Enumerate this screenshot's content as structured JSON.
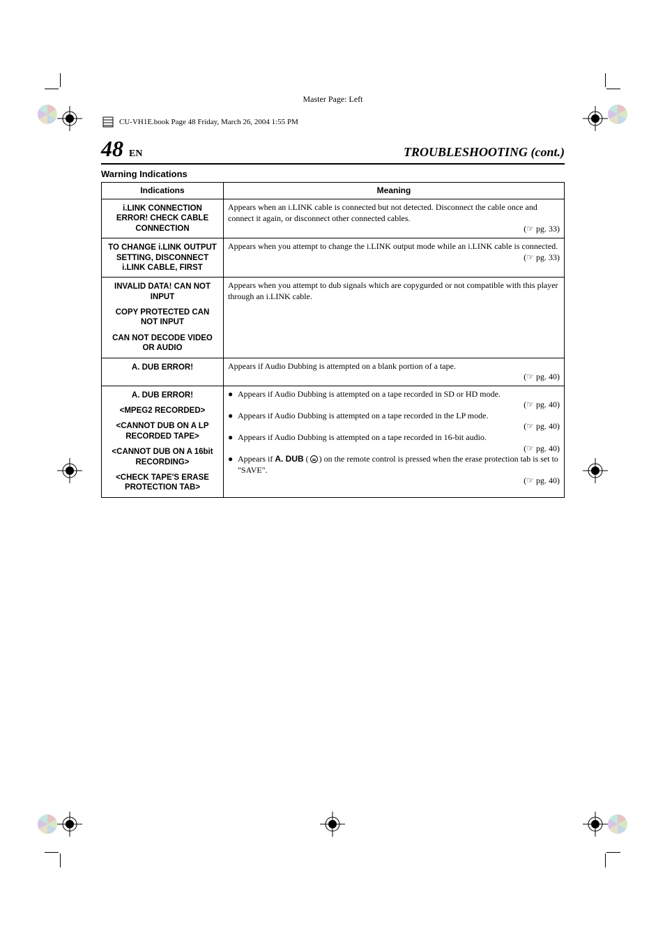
{
  "master_page_label": "Master Page: Left",
  "book_header": "CU-VH1E.book  Page 48  Friday, March 26, 2004  1:55 PM",
  "page_number": "48",
  "lang": "EN",
  "chapter_title": "TROUBLESHOOTING (cont.)",
  "section_title": "Warning Indications",
  "table": {
    "head": {
      "indications": "Indications",
      "meaning": "Meaning"
    },
    "rows": [
      {
        "indication_blocks": [
          "i.LINK CONNECTION ERROR! CHECK CABLE CONNECTION"
        ],
        "meaning": "Appears when an i.LINK cable is connected but not detected. Disconnect the cable once and connect it again, or disconnect other connected cables.",
        "pgref": "(☞ pg. 33)"
      },
      {
        "indication_blocks": [
          "TO CHANGE i.LINK OUTPUT SETTING, DISCONNECT i.LINK CABLE, FIRST"
        ],
        "meaning": "Appears when you attempt to change the i.LINK output mode while an i.LINK cable is connected.",
        "pgref": "(☞ pg. 33)"
      },
      {
        "indication_blocks": [
          "INVALID DATA! CAN NOT INPUT",
          "COPY PROTECTED CAN NOT INPUT",
          "CAN NOT DECODE VIDEO OR AUDIO"
        ],
        "meaning": "Appears when you attempt to dub signals which are copygurded or not compatible with this player through an i.LINK cable.",
        "pgref": null
      },
      {
        "indication_blocks": [
          "A. DUB ERROR!"
        ],
        "meaning": "Appears if Audio Dubbing is attempted on a blank portion of a tape.",
        "pgref": "(☞ pg. 40)"
      },
      {
        "indication_blocks": [
          "A. DUB ERROR!",
          "<MPEG2 RECORDED>",
          "<CANNOT DUB ON A LP RECORDED TAPE>",
          "<CANNOT DUB ON A 16bit RECORDING>",
          "<CHECK TAPE'S ERASE PROTECTION TAB>"
        ],
        "bullets": [
          {
            "text": "Appears if Audio Dubbing is attempted on a tape recorded in SD or HD mode.",
            "pgref": "(☞ pg. 40)"
          },
          {
            "text": "Appears if Audio Dubbing is attempted on a tape recorded in the LP mode.",
            "pgref": "(☞ pg. 40)"
          },
          {
            "text": "Appears if Audio Dubbing is attempted on a tape recorded in 16-bit audio.",
            "pgref": "(☞ pg. 40)"
          },
          {
            "pre": "Appears if ",
            "bold": "A. DUB",
            "post_icon": " on the remote control is pressed when the erase protection tab is set to \"SAVE\".",
            "pgref": "(☞ pg. 40)"
          }
        ]
      }
    ]
  },
  "colors": {
    "text": "#000000",
    "background": "#ffffff",
    "rule": "#000000"
  },
  "fonts": {
    "serif": "Times New Roman",
    "sans": "Arial",
    "page_number_pt": 32,
    "chapter_pt": 18,
    "body_pt": 12,
    "indication_pt": 11.5
  }
}
